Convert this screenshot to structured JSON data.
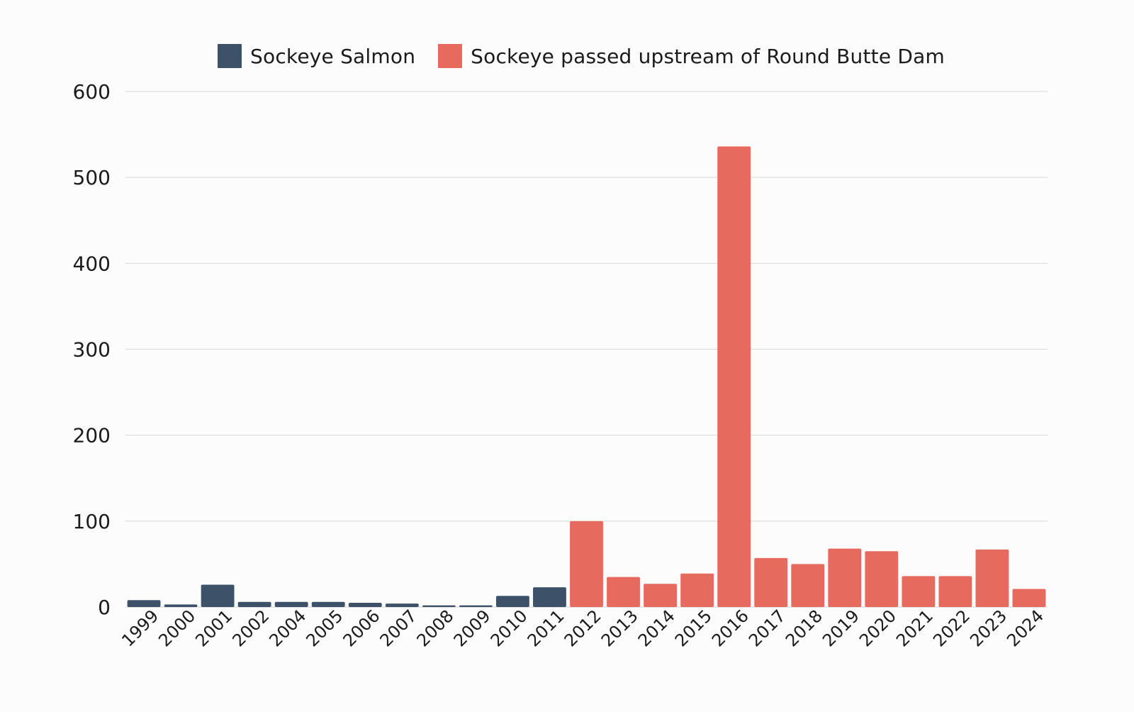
{
  "chart_data": {
    "type": "bar",
    "title": "",
    "xlabel": "",
    "ylabel": "",
    "ylim": [
      0,
      600
    ],
    "y_ticks": [
      "0",
      "100",
      "200",
      "300",
      "400",
      "500",
      "600"
    ],
    "grid": true,
    "legend_position": "top-center",
    "categories": [
      "1999",
      "2000",
      "2001",
      "2002",
      "2004",
      "2005",
      "2006",
      "2007",
      "2008",
      "2009",
      "2010",
      "2011",
      "2012",
      "2013",
      "2014",
      "2015",
      "2016",
      "2017",
      "2018",
      "2019",
      "2020",
      "2021",
      "2022",
      "2023",
      "2024"
    ],
    "series": [
      {
        "name": "Sockeye Salmon",
        "color": "#3d5168",
        "values": [
          8,
          3,
          26,
          6,
          6,
          6,
          5,
          4,
          2,
          2,
          13,
          23,
          null,
          null,
          null,
          null,
          null,
          null,
          null,
          null,
          null,
          null,
          null,
          null,
          null
        ]
      },
      {
        "name": "Sockeye passed upstream of Round Butte Dam",
        "color": "#e76a5e",
        "values": [
          null,
          null,
          null,
          null,
          null,
          null,
          null,
          null,
          null,
          null,
          null,
          null,
          100,
          35,
          27,
          39,
          536,
          57,
          50,
          68,
          65,
          36,
          36,
          67,
          21
        ]
      }
    ]
  }
}
